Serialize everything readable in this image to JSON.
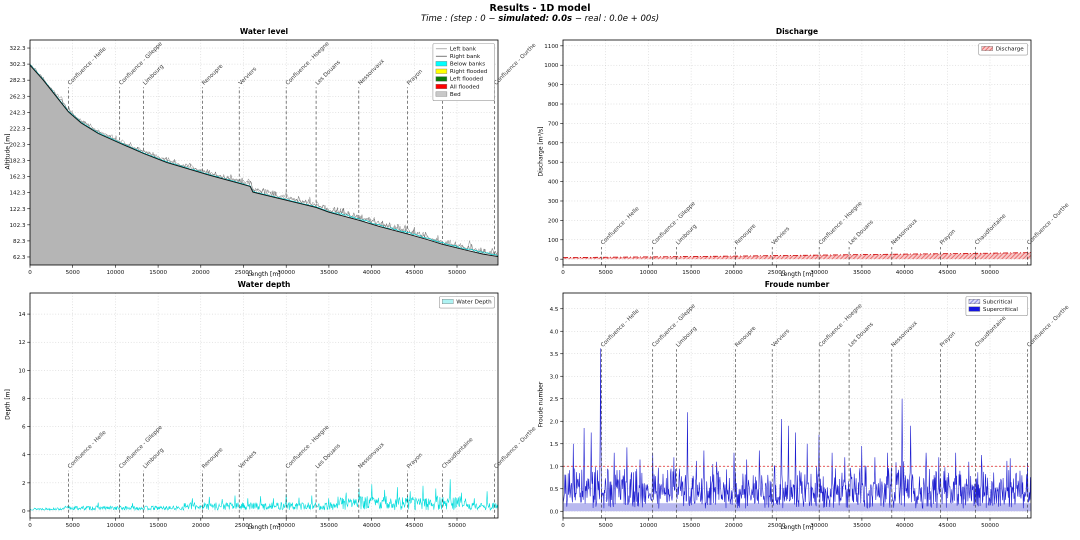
{
  "header": {
    "title": "Results - 1D model",
    "subtitle_pre": "Time : (step : 0 − ",
    "subtitle_bold": "simulated: 0.0s",
    "subtitle_post": " − real : 0.0e + 00s)"
  },
  "stations": [
    {
      "label": "Confluence - Helle",
      "x_m": 4500
    },
    {
      "label": "Confluence - Gileppe",
      "x_m": 10500
    },
    {
      "label": "Limbourg",
      "x_m": 13300
    },
    {
      "label": "Renoupre",
      "x_m": 20200
    },
    {
      "label": "Verviers",
      "x_m": 24500
    },
    {
      "label": "Confluence - Hoegne",
      "x_m": 30000
    },
    {
      "label": "Les Douans",
      "x_m": 33500
    },
    {
      "label": "Nessonvaux",
      "x_m": 38500
    },
    {
      "label": "Prayon",
      "x_m": 44200
    },
    {
      "label": "Chaudfontaine",
      "x_m": 48300
    },
    {
      "label": "Confluence - Ourthe",
      "x_m": 54400
    }
  ],
  "chart_data": [
    {
      "id": "water_level",
      "type": "area",
      "title": "Water level",
      "xlabel": "Length [m]",
      "ylabel": "Altitude [m]",
      "xlim": [
        0,
        54800
      ],
      "ylim": [
        52.3,
        332.3
      ],
      "xticks": [
        0,
        5000,
        10000,
        15000,
        20000,
        25000,
        30000,
        35000,
        40000,
        45000,
        50000
      ],
      "yticks": [
        62.3,
        82.3,
        102.3,
        122.3,
        142.3,
        162.3,
        182.3,
        202.3,
        222.3,
        242.3,
        262.3,
        282.3,
        302.3,
        322.3
      ],
      "ytick_decimals": 1,
      "grid": true,
      "station_top_frac": 0.21,
      "legend": {
        "position": "upper right",
        "entries": [
          {
            "label": "Left bank",
            "kind": "line",
            "color": "#b0b0b0"
          },
          {
            "label": "Right bank",
            "kind": "line",
            "color": "#7a7a7a"
          },
          {
            "label": "Below banks",
            "kind": "patch",
            "color": "#00ffff"
          },
          {
            "label": "Right flooded",
            "kind": "patch",
            "color": "#ffff00"
          },
          {
            "label": "Left flooded",
            "kind": "patch",
            "color": "#0a7a0a"
          },
          {
            "label": "All flooded",
            "kind": "patch",
            "color": "#ff0000"
          },
          {
            "label": "Bed",
            "kind": "patch",
            "color": "#c8c8c8"
          }
        ]
      },
      "bed_profile": [
        [
          0,
          301
        ],
        [
          1500,
          283
        ],
        [
          3000,
          263
        ],
        [
          4500,
          243
        ],
        [
          6000,
          229
        ],
        [
          8000,
          216
        ],
        [
          10500,
          204
        ],
        [
          13300,
          191
        ],
        [
          16000,
          180
        ],
        [
          18500,
          172
        ],
        [
          21000,
          164
        ],
        [
          24500,
          154
        ],
        [
          25800,
          150
        ],
        [
          26100,
          143
        ],
        [
          28000,
          138
        ],
        [
          30000,
          133
        ],
        [
          33500,
          124
        ],
        [
          35000,
          118
        ],
        [
          38500,
          108
        ],
        [
          41000,
          100
        ],
        [
          44200,
          91
        ],
        [
          46500,
          84
        ],
        [
          48300,
          78
        ],
        [
          51000,
          71
        ],
        [
          53000,
          66
        ],
        [
          54800,
          62.8
        ]
      ],
      "bank_noise": {
        "step_m": 120,
        "min_m": 1.0,
        "max_m": 7.0
      },
      "colors": {
        "bed_fill": "#b5b5b5",
        "bed_line": "#101010",
        "left_bank": "#909090",
        "right_bank": "#6b6b6b",
        "water": "#00c8c8"
      }
    },
    {
      "id": "discharge",
      "type": "area",
      "title": "Discharge",
      "xlabel": "Length [m]",
      "ylabel": "Discharge [m³/s]",
      "xlim": [
        0,
        54800
      ],
      "ylim": [
        -30,
        1130
      ],
      "xticks": [
        0,
        5000,
        10000,
        15000,
        20000,
        25000,
        30000,
        35000,
        40000,
        45000,
        50000
      ],
      "yticks": [
        0,
        100,
        200,
        300,
        400,
        500,
        600,
        700,
        800,
        900,
        1000,
        1100
      ],
      "ytick_decimals": 0,
      "grid": true,
      "station_top_frac": 0.92,
      "legend": {
        "position": "upper right",
        "entries": [
          {
            "label": "Discharge",
            "kind": "hatch-red",
            "color": "#e87070"
          }
        ]
      },
      "series": [
        {
          "name": "Discharge",
          "x": [
            0,
            10000,
            20000,
            30000,
            40000,
            50000,
            54800
          ],
          "y": [
            8,
            12,
            16,
            21,
            26,
            31,
            34
          ]
        }
      ],
      "colors": {
        "line": "#cc0000"
      }
    },
    {
      "id": "water_depth",
      "type": "line",
      "title": "Water depth",
      "xlabel": "Length [m]",
      "ylabel": "Depth [m]",
      "xlim": [
        0,
        54800
      ],
      "ylim": [
        -0.5,
        15.5
      ],
      "xticks": [
        0,
        5000,
        10000,
        15000,
        20000,
        25000,
        30000,
        35000,
        40000,
        45000,
        50000
      ],
      "yticks": [
        0,
        2,
        4,
        6,
        8,
        10,
        12,
        14
      ],
      "ytick_decimals": 0,
      "grid": true,
      "station_top_frac": 0.79,
      "legend": {
        "position": "upper right",
        "entries": [
          {
            "label": "Water Depth",
            "kind": "patch",
            "color": "#aef3f3"
          }
        ]
      },
      "noise": {
        "seed": 13,
        "step_m": 60,
        "base": 0.06,
        "rand": 0.33,
        "env": [
          [
            4000,
            0.5
          ],
          [
            18000,
            0.9
          ],
          [
            36000,
            1.7
          ],
          [
            51000,
            3.0
          ],
          [
            60000,
            1.6
          ]
        ]
      },
      "spikes": [
        [
          8000,
          0.6
        ],
        [
          12000,
          0.55
        ],
        [
          19000,
          0.9
        ],
        [
          21000,
          1.0
        ],
        [
          22500,
          0.85
        ],
        [
          24000,
          1.1
        ],
        [
          25500,
          0.9
        ],
        [
          27000,
          1.05
        ],
        [
          28500,
          0.9
        ],
        [
          30000,
          1.2
        ],
        [
          31500,
          0.95
        ],
        [
          33000,
          1.1
        ],
        [
          35000,
          0.9
        ],
        [
          37000,
          1.3
        ],
        [
          38500,
          1.6
        ],
        [
          40000,
          1.9
        ],
        [
          41500,
          1.5
        ],
        [
          43000,
          1.7
        ],
        [
          44500,
          1.4
        ],
        [
          46000,
          1.8
        ],
        [
          47500,
          1.6
        ],
        [
          49200,
          2.25
        ],
        [
          50500,
          1.3
        ],
        [
          52000,
          0.9
        ],
        [
          53500,
          1.4
        ]
      ],
      "colors": {
        "line": "#00dcdc"
      }
    },
    {
      "id": "froude",
      "type": "line",
      "title": "Froude number",
      "xlabel": "Length [m]",
      "ylabel": "Froude number",
      "xlim": [
        0,
        54800
      ],
      "ylim": [
        -0.15,
        4.85
      ],
      "xticks": [
        0,
        5000,
        10000,
        15000,
        20000,
        25000,
        30000,
        35000,
        40000,
        45000,
        50000
      ],
      "yticks": [
        0.0,
        0.5,
        1.0,
        1.5,
        2.0,
        2.5,
        3.0,
        3.5,
        4.0,
        4.5
      ],
      "ytick_decimals": 1,
      "grid": true,
      "station_top_frac": 0.25,
      "critical_value": 1.0,
      "legend": {
        "position": "upper right",
        "entries": [
          {
            "label": "Subcritical",
            "kind": "hatch-blue",
            "color": "#9999ee"
          },
          {
            "label": "Supercritical",
            "kind": "patch",
            "color": "#1515e0"
          }
        ]
      },
      "noise": {
        "seed": 29,
        "step_m": 55,
        "base": 0.06
      },
      "spikes": [
        [
          1200,
          1.5
        ],
        [
          2500,
          1.85
        ],
        [
          3300,
          1.75
        ],
        [
          4400,
          3.62
        ],
        [
          6000,
          1.3
        ],
        [
          7500,
          1.42
        ],
        [
          9000,
          1.15
        ],
        [
          10500,
          1.3
        ],
        [
          13000,
          1.2
        ],
        [
          14600,
          2.2
        ],
        [
          16500,
          1.35
        ],
        [
          18000,
          1.1
        ],
        [
          20000,
          1.3
        ],
        [
          21500,
          1.15
        ],
        [
          23000,
          1.35
        ],
        [
          25600,
          2.05
        ],
        [
          26400,
          1.9
        ],
        [
          27200,
          1.75
        ],
        [
          28600,
          1.5
        ],
        [
          30000,
          1.7
        ],
        [
          31500,
          1.3
        ],
        [
          33000,
          1.2
        ],
        [
          35000,
          1.45
        ],
        [
          36500,
          1.2
        ],
        [
          38000,
          1.3
        ],
        [
          39700,
          2.5
        ],
        [
          40700,
          1.9
        ],
        [
          42500,
          1.3
        ],
        [
          44000,
          1.2
        ],
        [
          46000,
          1.3
        ],
        [
          47500,
          1.1
        ],
        [
          49000,
          1.25
        ],
        [
          52000,
          1.12
        ],
        [
          53500,
          0.9
        ]
      ],
      "colors": {
        "line": "#1f1fd0",
        "band": "#b9b9ef",
        "critical": "#dd2222"
      }
    }
  ]
}
